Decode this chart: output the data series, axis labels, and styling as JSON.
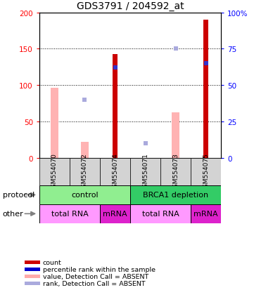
{
  "title": "GDS3791 / 204592_at",
  "samples": [
    "GSM554070",
    "GSM554072",
    "GSM554074",
    "GSM554071",
    "GSM554073",
    "GSM554075"
  ],
  "count_values": [
    0,
    0,
    143,
    0,
    0,
    190
  ],
  "absent_value_bars": [
    96,
    22,
    0,
    0,
    62,
    0
  ],
  "absent_rank_markers": [
    0,
    40,
    0,
    10,
    75,
    0
  ],
  "percentile_rank_markers": [
    0,
    0,
    124,
    0,
    0,
    130
  ],
  "ylim_left": [
    0,
    200
  ],
  "ylim_right": [
    0,
    100
  ],
  "yticks_left": [
    0,
    50,
    100,
    150,
    200
  ],
  "yticks_right": [
    0,
    25,
    50,
    75,
    100
  ],
  "yticklabels_left": [
    "0",
    "50",
    "100",
    "150",
    "200"
  ],
  "yticklabels_right": [
    "0",
    "25",
    "50",
    "75",
    "100%"
  ],
  "protocol_groups": [
    {
      "label": "control",
      "start": 0,
      "end": 3,
      "color": "#90ee90"
    },
    {
      "label": "BRCA1 depletion",
      "start": 3,
      "end": 6,
      "color": "#33cc66"
    }
  ],
  "other_groups": [
    {
      "label": "total RNA",
      "start": 0,
      "end": 2,
      "color": "#ff99ff"
    },
    {
      "label": "mRNA",
      "start": 2,
      "end": 3,
      "color": "#dd22cc"
    },
    {
      "label": "total RNA",
      "start": 3,
      "end": 5,
      "color": "#ff99ff"
    },
    {
      "label": "mRNA",
      "start": 5,
      "end": 6,
      "color": "#dd22cc"
    }
  ],
  "legend_items": [
    {
      "color": "#cc0000",
      "label": "count"
    },
    {
      "color": "#0000cc",
      "label": "percentile rank within the sample"
    },
    {
      "color": "#ffaaaa",
      "label": "value, Detection Call = ABSENT"
    },
    {
      "color": "#aaaadd",
      "label": "rank, Detection Call = ABSENT"
    }
  ],
  "protocol_label": "protocol",
  "other_label": "other",
  "count_color": "#cc0000",
  "absent_bar_color": "#ffb3b3",
  "absent_rank_color": "#aaaadd",
  "percentile_color": "#3333cc",
  "grid_dotted_color": "#000000"
}
